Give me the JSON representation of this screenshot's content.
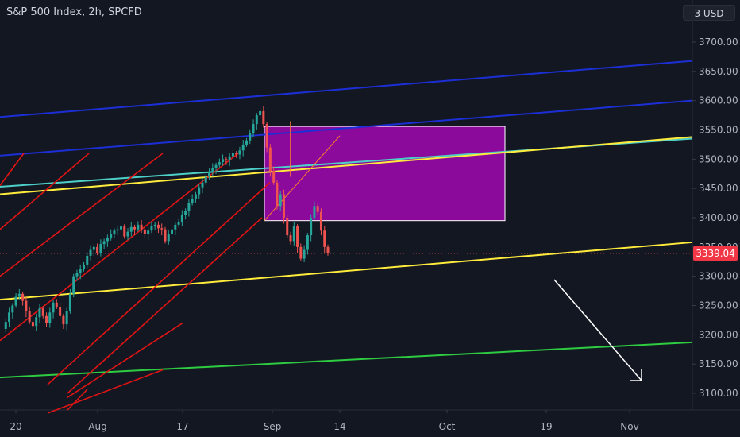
{
  "header": {
    "title": "S&P 500 Index, 2h, SPCFD",
    "currency": "USD",
    "currency_prefix": "3"
  },
  "last_price": {
    "label": "3339.04",
    "value": 3339.04,
    "color": "#f23645"
  },
  "colors": {
    "background": "#131722",
    "up": "#26a69a",
    "down": "#ef5350",
    "box_fill": "#8b0a9b",
    "channel_blue": "#1c2fd6",
    "yellow": "#ffeb3b",
    "teal": "#4dd0c8",
    "green": "#2ecc40",
    "red": "#e01414",
    "orange": "#ff7f2a",
    "white_arrow": "#ffffff"
  },
  "chart_data": {
    "type": "candlestick",
    "y_ticks": [
      "3700.00",
      "3650.00",
      "3600.00",
      "3550.00",
      "3500.00",
      "3450.00",
      "3400.00",
      "3350.00",
      "3300.00",
      "3250.00",
      "3200.00",
      "3150.00",
      "3100.00"
    ],
    "y_range": [
      3080,
      3760
    ],
    "x_ticks": [
      "20",
      "Aug",
      "17",
      "Sep",
      "14",
      "Oct",
      "19",
      "Nov"
    ],
    "price_path": [
      3210,
      3222,
      3238,
      3250,
      3265,
      3270,
      3258,
      3240,
      3222,
      3215,
      3230,
      3245,
      3232,
      3220,
      3238,
      3255,
      3248,
      3232,
      3218,
      3240,
      3270,
      3300,
      3305,
      3312,
      3320,
      3335,
      3345,
      3350,
      3340,
      3355,
      3360,
      3365,
      3372,
      3378,
      3380,
      3385,
      3368,
      3376,
      3384,
      3380,
      3388,
      3380,
      3372,
      3378,
      3385,
      3388,
      3382,
      3380,
      3360,
      3372,
      3380,
      3388,
      3392,
      3405,
      3412,
      3425,
      3432,
      3440,
      3452,
      3460,
      3470,
      3478,
      3485,
      3490,
      3495,
      3500,
      3498,
      3505,
      3510,
      3508,
      3515,
      3525,
      3532,
      3545,
      3560,
      3575,
      3582,
      3560,
      3520,
      3480,
      3460,
      3420,
      3440,
      3400,
      3370,
      3360,
      3385,
      3350,
      3330,
      3345,
      3370,
      3400,
      3420,
      3410,
      3378,
      3350,
      3339
    ]
  }
}
